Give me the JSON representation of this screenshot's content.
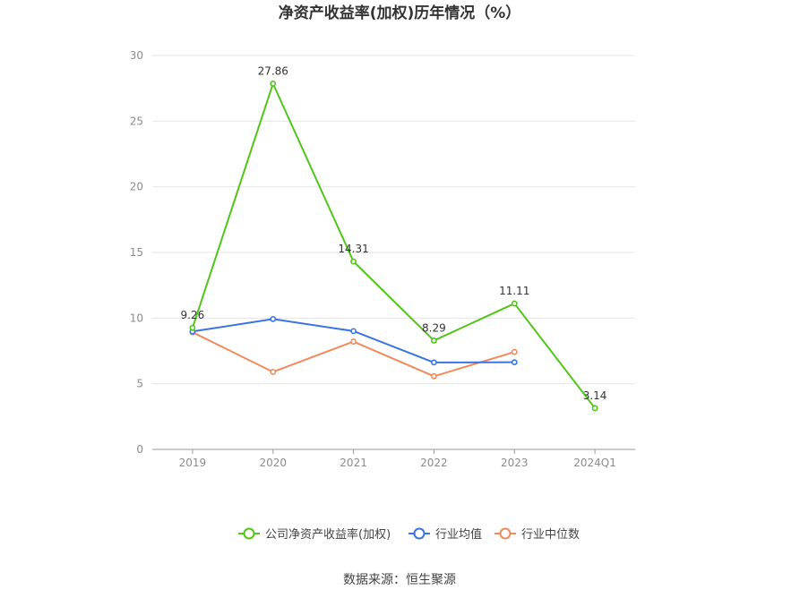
{
  "chart_data": {
    "type": "line",
    "title": "净资产收益率(加权)历年情况（%）",
    "categories": [
      "2019",
      "2020",
      "2021",
      "2022",
      "2023",
      "2024Q1"
    ],
    "ylim": [
      0,
      30
    ],
    "yticks": [
      "0",
      "5",
      "10",
      "15",
      "20",
      "25",
      "30"
    ],
    "grid": true,
    "legend_position": "bottom-center",
    "series": [
      {
        "name": "公司净资产收益率(加权)",
        "color": "#52c41a",
        "values": [
          9.26,
          27.86,
          14.31,
          8.29,
          11.11,
          3.14
        ],
        "labels": [
          "9.26",
          "27.86",
          "14.31",
          "8.29",
          "11.11",
          "3.14"
        ]
      },
      {
        "name": "行业均值",
        "color": "#3b74e0",
        "values": [
          8.98,
          9.93,
          9.01,
          6.62,
          6.64,
          null
        ]
      },
      {
        "name": "行业中位数",
        "color": "#f08a5d",
        "values": [
          8.92,
          5.9,
          8.21,
          5.57,
          7.42,
          null
        ]
      }
    ]
  },
  "source_text": "数据来源：恒生聚源"
}
